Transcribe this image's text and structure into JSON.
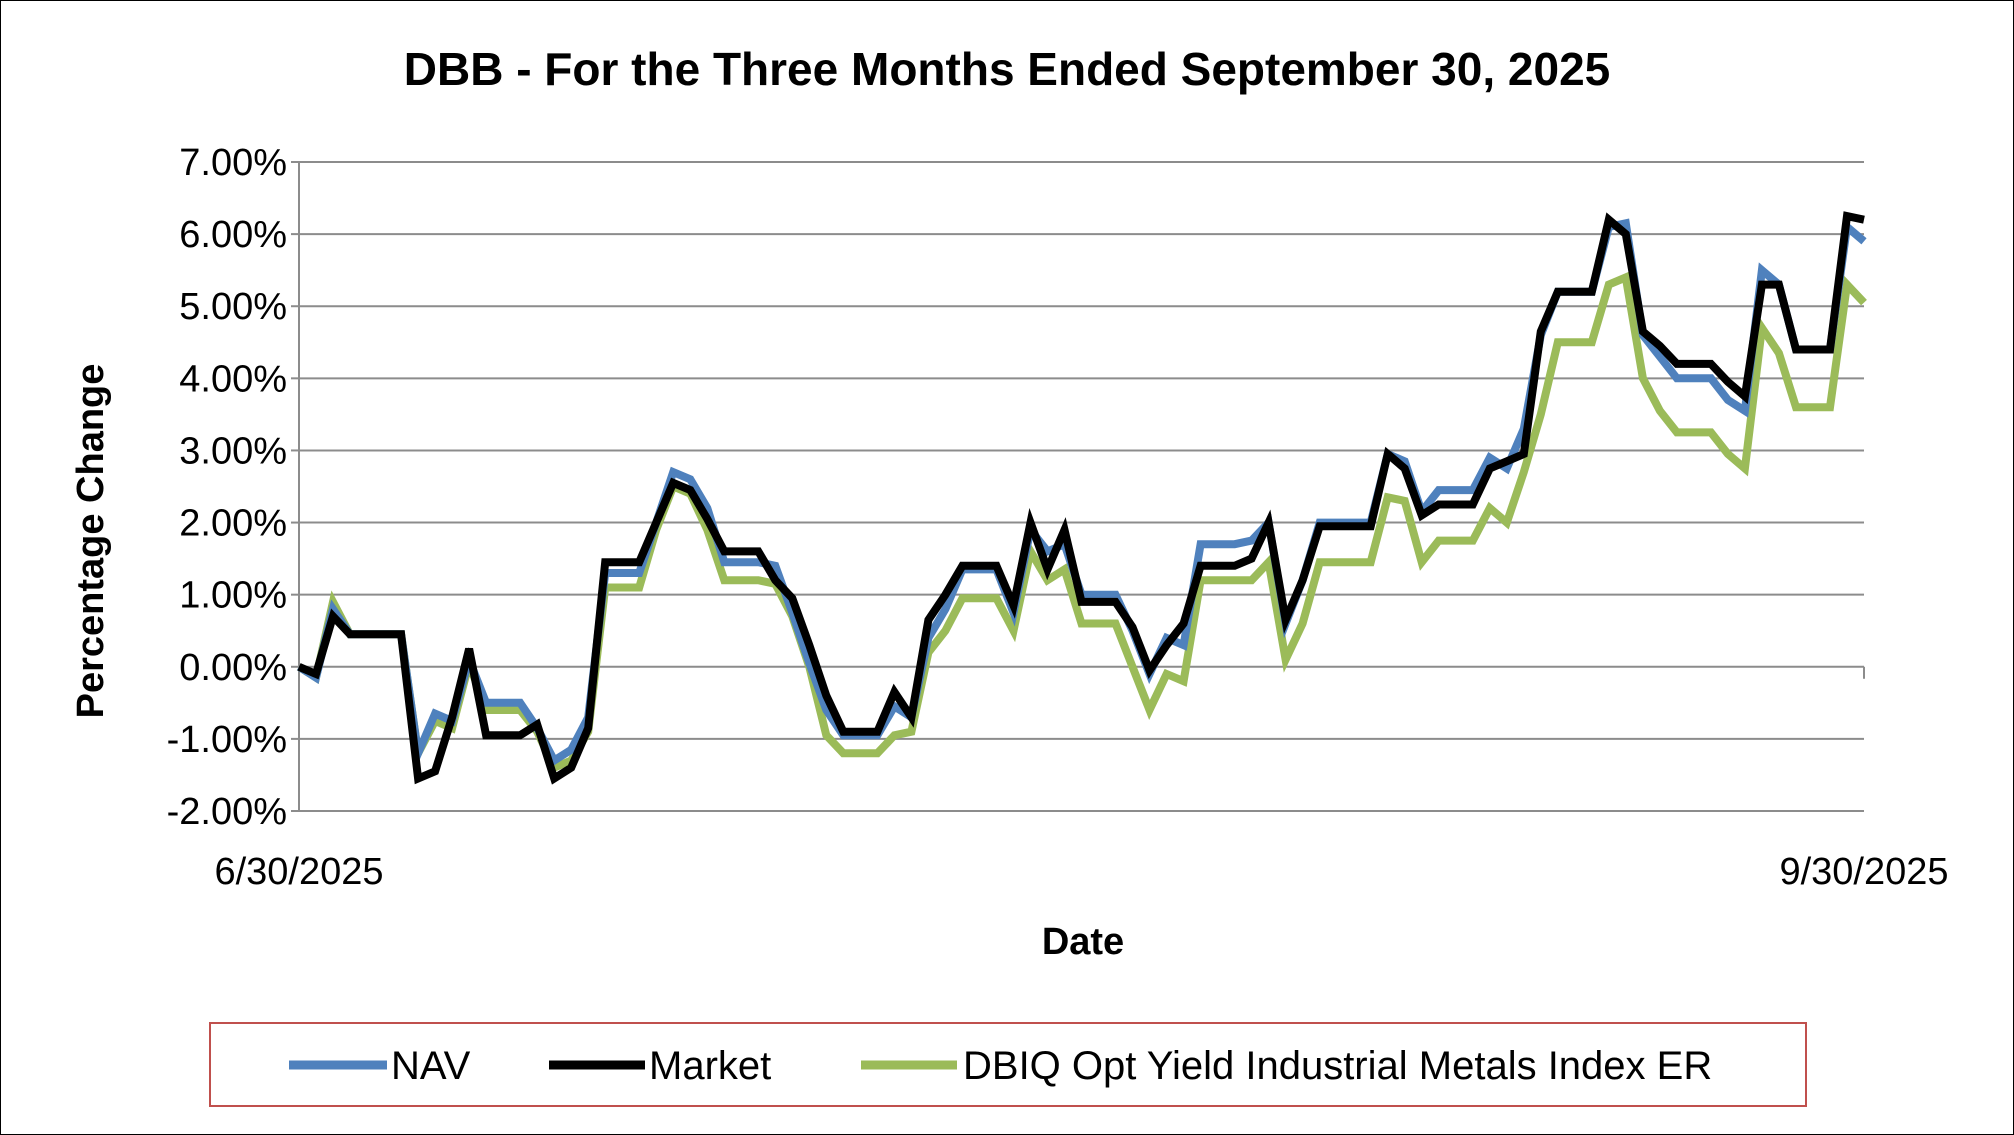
{
  "chart_data": {
    "type": "line",
    "title": "DBB - For the Three Months Ended September 30, 2025",
    "xlabel": "Date",
    "ylabel": "Percentage Change",
    "ylim": [
      -2,
      7
    ],
    "yticks": [
      "7.00%",
      "6.00%",
      "5.00%",
      "4.00%",
      "3.00%",
      "2.00%",
      "1.00%",
      "0.00%",
      "-1.00%",
      "-2.00%"
    ],
    "ytick_values": [
      7,
      6,
      5,
      4,
      3,
      2,
      1,
      0,
      -1,
      -2
    ],
    "xticks": [
      "6/30/2025",
      "9/30/2025"
    ],
    "grid": true,
    "legend_position": "bottom",
    "series": [
      {
        "name": "NAV",
        "color": "#4F81BD",
        "values": [
          0.0,
          -0.15,
          0.8,
          0.45,
          0.45,
          0.45,
          0.45,
          -1.2,
          -0.65,
          -0.75,
          0.1,
          -0.5,
          -0.5,
          -0.5,
          -0.85,
          -1.3,
          -1.15,
          -0.7,
          1.3,
          1.3,
          1.3,
          2.0,
          2.7,
          2.6,
          2.2,
          1.45,
          1.45,
          1.45,
          1.4,
          0.75,
          0.05,
          -0.6,
          -0.95,
          -0.95,
          -0.95,
          -0.55,
          -0.7,
          0.4,
          0.8,
          1.35,
          1.35,
          1.35,
          0.75,
          1.9,
          1.6,
          1.7,
          1.0,
          1.0,
          1.0,
          0.5,
          -0.1,
          0.4,
          0.3,
          1.7,
          1.7,
          1.7,
          1.75,
          2.0,
          0.6,
          1.2,
          2.0,
          2.0,
          2.0,
          2.0,
          2.95,
          2.85,
          2.15,
          2.45,
          2.45,
          2.45,
          2.9,
          2.75,
          3.3,
          4.6,
          5.2,
          5.2,
          5.2,
          6.1,
          6.15,
          4.6,
          4.3,
          4.0,
          4.0,
          4.0,
          3.7,
          3.55,
          5.5,
          5.3,
          4.4,
          4.4,
          4.4,
          6.1,
          5.9
        ]
      },
      {
        "name": "Market",
        "color": "#000000",
        "values": [
          0.0,
          -0.1,
          0.7,
          0.45,
          0.45,
          0.45,
          0.45,
          -1.55,
          -1.45,
          -0.7,
          0.25,
          -0.95,
          -0.95,
          -0.95,
          -0.8,
          -1.55,
          -1.4,
          -0.85,
          1.45,
          1.45,
          1.45,
          2.0,
          2.55,
          2.45,
          2.05,
          1.6,
          1.6,
          1.6,
          1.2,
          0.95,
          0.3,
          -0.4,
          -0.9,
          -0.9,
          -0.9,
          -0.35,
          -0.7,
          0.65,
          1.0,
          1.4,
          1.4,
          1.4,
          0.85,
          2.0,
          1.35,
          1.9,
          0.9,
          0.9,
          0.9,
          0.55,
          -0.05,
          0.3,
          0.6,
          1.4,
          1.4,
          1.4,
          1.5,
          2.0,
          0.65,
          1.2,
          1.95,
          1.95,
          1.95,
          1.95,
          2.95,
          2.75,
          2.1,
          2.25,
          2.25,
          2.25,
          2.75,
          2.85,
          2.95,
          4.65,
          5.2,
          5.2,
          5.2,
          6.2,
          6.0,
          4.65,
          4.45,
          4.2,
          4.2,
          4.2,
          3.95,
          3.75,
          5.3,
          5.3,
          4.4,
          4.4,
          4.4,
          6.25,
          6.2
        ]
      },
      {
        "name": "DBIQ Opt Yield Industrial Metals Index ER",
        "color": "#9BBB59",
        "values": [
          0.0,
          -0.15,
          0.9,
          0.45,
          0.45,
          0.45,
          0.45,
          -1.2,
          -0.75,
          -0.85,
          0.05,
          -0.6,
          -0.6,
          -0.6,
          -0.9,
          -1.4,
          -1.3,
          -0.9,
          1.1,
          1.1,
          1.1,
          1.9,
          2.5,
          2.4,
          1.9,
          1.2,
          1.2,
          1.2,
          1.15,
          0.7,
          0.0,
          -0.95,
          -1.2,
          -1.2,
          -1.2,
          -0.95,
          -0.9,
          0.2,
          0.5,
          0.95,
          0.95,
          0.95,
          0.5,
          1.6,
          1.2,
          1.35,
          0.6,
          0.6,
          0.6,
          0.0,
          -0.6,
          -0.1,
          -0.2,
          1.2,
          1.2,
          1.2,
          1.2,
          1.45,
          0.1,
          0.6,
          1.45,
          1.45,
          1.45,
          1.45,
          2.35,
          2.3,
          1.45,
          1.75,
          1.75,
          1.75,
          2.2,
          2.0,
          2.7,
          3.5,
          4.5,
          4.5,
          4.5,
          5.3,
          5.4,
          4.0,
          3.55,
          3.25,
          3.25,
          3.25,
          2.95,
          2.75,
          4.7,
          4.35,
          3.6,
          3.6,
          3.6,
          5.3,
          5.05
        ]
      }
    ]
  }
}
